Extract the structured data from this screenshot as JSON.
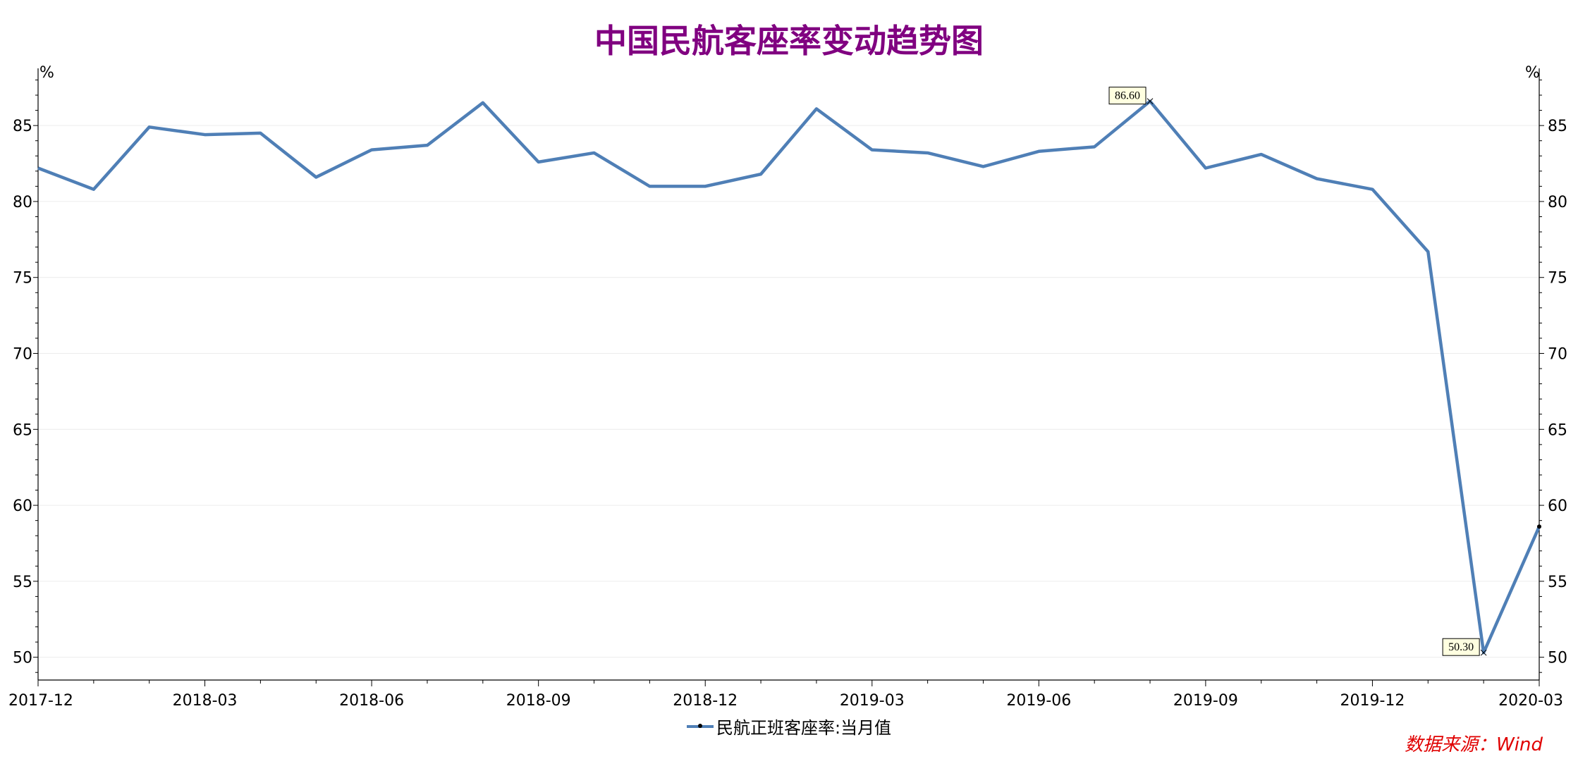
{
  "title": "中国民航客座率变动趋势图",
  "source": "数据来源：Wind",
  "chart_data": {
    "type": "line",
    "title": "中国民航客座率变动趋势图",
    "y_unit_left": "%",
    "y_unit_right": "%",
    "ylim": [
      48.5,
      88.3
    ],
    "yticks": [
      50,
      55,
      60,
      65,
      70,
      75,
      80,
      85
    ],
    "x_tick_labels": [
      "2017-12",
      "2018-03",
      "2018-06",
      "2018-09",
      "2018-12",
      "2019-03",
      "2019-06",
      "2019-09",
      "2019-12",
      "2020-03"
    ],
    "x": [
      "2017-12",
      "2018-01",
      "2018-02",
      "2018-03",
      "2018-04",
      "2018-05",
      "2018-06",
      "2018-07",
      "2018-08",
      "2018-09",
      "2018-10",
      "2018-11",
      "2018-12",
      "2019-01",
      "2019-02",
      "2019-03",
      "2019-04",
      "2019-05",
      "2019-06",
      "2019-07",
      "2019-08",
      "2019-09",
      "2019-10",
      "2019-11",
      "2019-12",
      "2020-01",
      "2020-02",
      "2020-03"
    ],
    "series": [
      {
        "name": "民航正班客座率:当月值",
        "color": "#4f7fb6",
        "values": [
          82.2,
          80.8,
          84.9,
          84.4,
          84.5,
          81.6,
          83.4,
          83.7,
          86.5,
          82.6,
          83.2,
          81.0,
          81.0,
          81.8,
          86.1,
          83.4,
          83.2,
          82.3,
          83.3,
          83.6,
          86.6,
          82.2,
          83.1,
          81.5,
          80.8,
          76.7,
          50.3,
          58.6
        ]
      }
    ],
    "annotations": [
      {
        "x": "2019-08",
        "y": 86.6,
        "label": "86.60"
      },
      {
        "x": "2020-02",
        "y": 50.3,
        "label": "50.30"
      }
    ],
    "legend": "bottom",
    "grid": true
  }
}
